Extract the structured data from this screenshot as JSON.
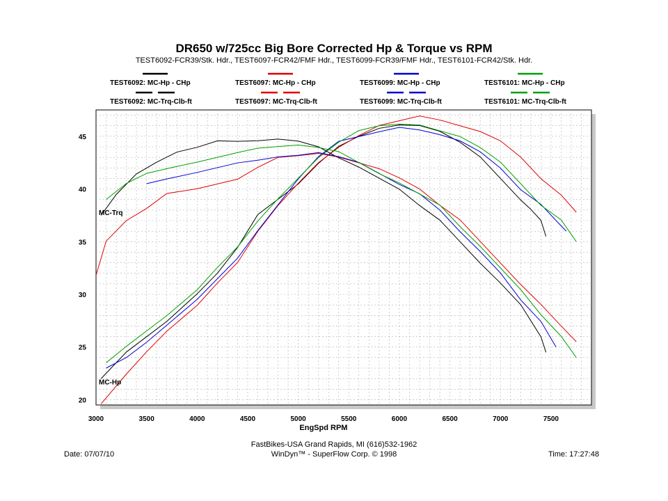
{
  "chart_data": {
    "type": "line",
    "title": "DR650 w/725cc Big Bore Corrected Hp & Torque vs RPM",
    "subtitle": "TEST6092-FCR39/Stk. Hdr., TEST6097-FCR42/FMF Hdr., TEST6099-FCR39/FMF Hdr., TEST6101-FCR42/Stk. Hdr.",
    "xlabel": "EngSpd  RPM",
    "ylabel": "",
    "xlim": [
      3000,
      7900
    ],
    "ylim": [
      19.5,
      47.5
    ],
    "x_ticks": [
      3000,
      3500,
      4000,
      4500,
      5000,
      5500,
      6000,
      6500,
      7000,
      7500
    ],
    "y_ticks": [
      20,
      25,
      30,
      35,
      40,
      45
    ],
    "grid": true,
    "annotations": [
      {
        "text": "MC-Trq",
        "x": 3000,
        "y": 37.8
      },
      {
        "text": "MC-Hp",
        "x": 3000,
        "y": 21.7
      }
    ],
    "legend": {
      "placement": "top",
      "items": [
        {
          "label": "TEST6092: MC-Hp - CHp",
          "color": "#000000",
          "dash": "solid"
        },
        {
          "label": "TEST6097: MC-Hp - CHp",
          "color": "#e00000",
          "dash": "solid"
        },
        {
          "label": "TEST6099: MC-Hp - CHp",
          "color": "#0000d0",
          "dash": "solid"
        },
        {
          "label": "TEST6101: MC-Hp - CHp",
          "color": "#00a000",
          "dash": "solid"
        },
        {
          "label": "TEST6092: MC-Trq-Clb-ft",
          "color": "#000000",
          "dash": "dashed"
        },
        {
          "label": "TEST6097: MC-Trq-Clb-ft",
          "color": "#e00000",
          "dash": "dashed"
        },
        {
          "label": "TEST6099: MC-Trq-Clb-ft",
          "color": "#0000d0",
          "dash": "dashed"
        },
        {
          "label": "TEST6101: MC-Trq-Clb-ft",
          "color": "#00a000",
          "dash": "dashed"
        }
      ]
    },
    "series": [
      {
        "name": "TEST6092: MC-Hp - CHp",
        "color": "#000000",
        "x": [
          3050,
          3300,
          3500,
          3700,
          4000,
          4200,
          4400,
          4600,
          4800,
          5000,
          5200,
          5400,
          5600,
          5800,
          6000,
          6200,
          6400,
          6600,
          6800,
          7000,
          7200,
          7300,
          7400,
          7450
        ],
        "y": [
          22,
          24.5,
          26,
          27.5,
          30,
          32,
          34.5,
          37.5,
          39,
          40.5,
          42.5,
          44,
          45,
          45.8,
          46,
          46,
          45.5,
          44.5,
          43,
          41,
          39,
          38,
          37,
          35.5
        ]
      },
      {
        "name": "TEST6097: MC-Hp - CHp",
        "color": "#e00000",
        "x": [
          3050,
          3300,
          3500,
          3700,
          4000,
          4200,
          4400,
          4600,
          4800,
          5000,
          5200,
          5400,
          5600,
          5800,
          6000,
          6200,
          6400,
          6600,
          6800,
          7000,
          7200,
          7400,
          7600,
          7750
        ],
        "y": [
          19.6,
          22.5,
          24.5,
          26.5,
          29,
          31,
          33,
          36,
          38.5,
          40.5,
          42.5,
          44,
          45,
          46,
          46.5,
          47,
          46.5,
          46,
          45.5,
          44.5,
          43,
          41,
          39.5,
          37.8
        ]
      },
      {
        "name": "TEST6099: MC-Hp - CHp",
        "color": "#0000d0",
        "x": [
          3100,
          3300,
          3500,
          3700,
          4000,
          4200,
          4400,
          4600,
          4800,
          5000,
          5200,
          5400,
          5600,
          5800,
          6000,
          6200,
          6400,
          6600,
          6800,
          7000,
          7200,
          7400,
          7550,
          7650
        ],
        "y": [
          23,
          24,
          25.5,
          27,
          29.5,
          31.5,
          33.5,
          36,
          38.5,
          41,
          43,
          44.5,
          45,
          45.5,
          45.8,
          45.6,
          45.2,
          44.5,
          43.5,
          42,
          40,
          38.5,
          37,
          36
        ]
      },
      {
        "name": "TEST6101: MC-Hp - CHp",
        "color": "#00a000",
        "x": [
          3100,
          3300,
          3500,
          3700,
          4000,
          4200,
          4400,
          4600,
          4800,
          5000,
          5200,
          5400,
          5600,
          5800,
          6000,
          6200,
          6400,
          6600,
          6800,
          7000,
          7200,
          7400,
          7600,
          7750
        ],
        "y": [
          23.5,
          25,
          26.5,
          28,
          30.5,
          32.5,
          34.5,
          37,
          39,
          41,
          43,
          44.5,
          45.5,
          46,
          46.2,
          46,
          45.5,
          45,
          44,
          42.5,
          40.5,
          38.5,
          37,
          35
        ]
      },
      {
        "name": "TEST6092: MC-Trq-Clb-ft",
        "color": "#000000",
        "x": [
          3050,
          3200,
          3400,
          3600,
          3800,
          4000,
          4200,
          4400,
          4600,
          4800,
          5000,
          5200,
          5400,
          5600,
          5800,
          6000,
          6200,
          6400,
          6600,
          6800,
          7000,
          7200,
          7400,
          7450
        ],
        "y": [
          37.5,
          39.5,
          41.5,
          42.5,
          43.5,
          44,
          44.5,
          44.5,
          44.6,
          44.8,
          44.5,
          44,
          43,
          42,
          41,
          40,
          38.5,
          37,
          35,
          33,
          31,
          29,
          26,
          24.5
        ]
      },
      {
        "name": "TEST6097: MC-Trq-Clb-ft",
        "color": "#e00000",
        "x": [
          3000,
          3100,
          3300,
          3500,
          3700,
          4000,
          4200,
          4400,
          4600,
          4800,
          5000,
          5200,
          5400,
          5600,
          5800,
          6000,
          6200,
          6400,
          6600,
          6800,
          7000,
          7200,
          7400,
          7600,
          7750
        ],
        "y": [
          31.8,
          35,
          37,
          38.2,
          39.5,
          40,
          40.5,
          41,
          42,
          43,
          43.2,
          43.3,
          43,
          42.5,
          42,
          41,
          40,
          38.5,
          37,
          35,
          33,
          31,
          29,
          27,
          25.5
        ]
      },
      {
        "name": "TEST6099: MC-Trq-Clb-ft",
        "color": "#0000d0",
        "x": [
          3500,
          3700,
          4000,
          4200,
          4400,
          4600,
          4800,
          5000,
          5200,
          5400,
          5600,
          5800,
          6000,
          6200,
          6400,
          6600,
          6800,
          7000,
          7200,
          7400,
          7550
        ],
        "y": [
          40.5,
          41,
          41.5,
          42,
          42.5,
          42.8,
          43,
          43.2,
          43.5,
          43,
          42.5,
          41.5,
          40.5,
          39.5,
          38,
          36,
          34,
          32,
          29.5,
          27.5,
          25
        ]
      },
      {
        "name": "TEST6101: MC-Trq-Clb-ft",
        "color": "#00a000",
        "x": [
          3100,
          3300,
          3500,
          3700,
          4000,
          4200,
          4400,
          4600,
          4800,
          5000,
          5200,
          5400,
          5600,
          5800,
          6000,
          6200,
          6400,
          6600,
          6800,
          7000,
          7200,
          7400,
          7600,
          7750
        ],
        "y": [
          39,
          40.5,
          41.5,
          42,
          42.5,
          43,
          43.5,
          43.8,
          44,
          44.2,
          44,
          43.5,
          42.5,
          41.5,
          40.5,
          39.5,
          38.5,
          36.5,
          34.5,
          32.5,
          30.5,
          28,
          26,
          24
        ]
      }
    ]
  },
  "footer": {
    "center_line1": "FastBikes-USA Grand Rapids, MI (616)532-1962",
    "center_line2": "WinDyn™ - SuperFlow Corp. © 1998",
    "date": "Date: 07/07/10",
    "time": "Time: 17:27:48"
  }
}
